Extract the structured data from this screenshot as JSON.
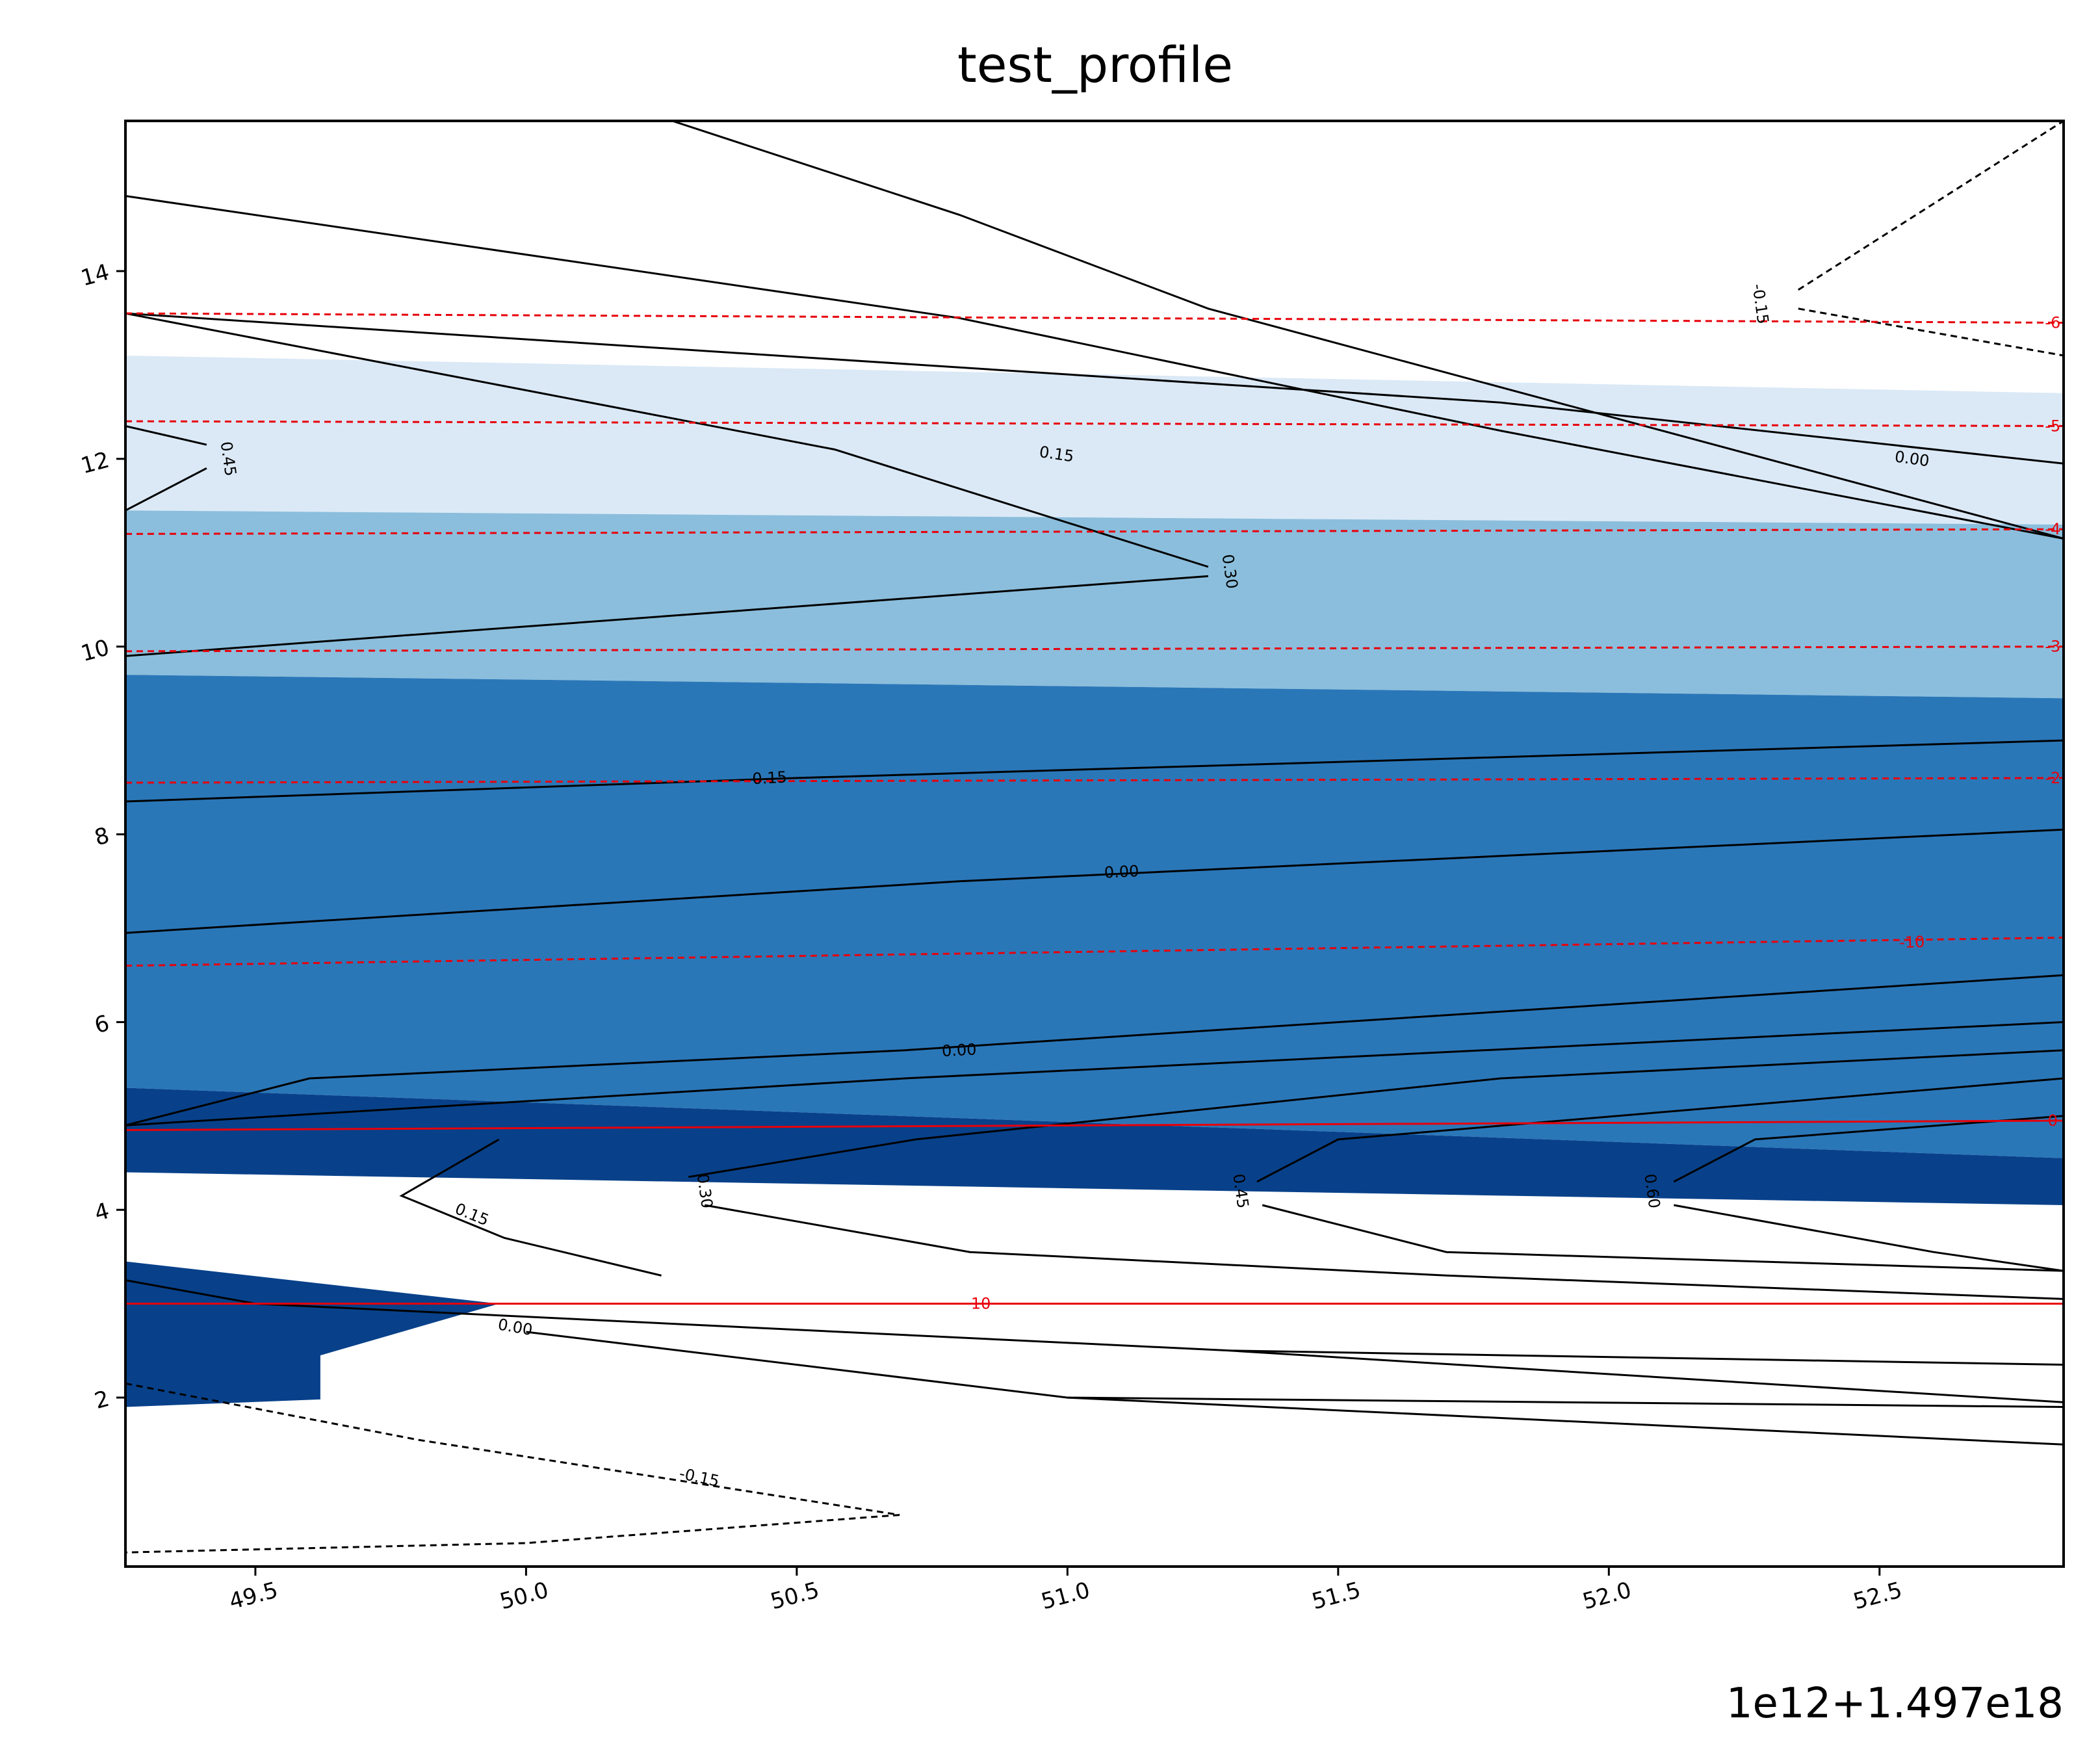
{
  "chart_data": {
    "type": "contour",
    "title": "test_profile",
    "xlabel": "",
    "ylabel": "",
    "x_offset_label": "1e12+1.497e18",
    "xlim": [
      49.26,
      52.84
    ],
    "ylim": [
      0.2,
      15.6
    ],
    "x_ticks": [
      49.5,
      50.0,
      50.5,
      51.0,
      51.5,
      52.0,
      52.5
    ],
    "x_tick_labels": [
      "49.5",
      "50.0",
      "50.5",
      "51.0",
      "51.5",
      "52.0",
      "52.5"
    ],
    "y_ticks": [
      2,
      4,
      6,
      8,
      10,
      12,
      14
    ],
    "y_tick_labels": [
      "2",
      "4",
      "6",
      "8",
      "10",
      "12",
      "14"
    ],
    "filled_regions": [
      {
        "color": "#dbe9f6",
        "points": [
          [
            49.26,
            13.1
          ],
          [
            52.84,
            12.7
          ],
          [
            52.84,
            11.3
          ],
          [
            49.26,
            11.45
          ]
        ]
      },
      {
        "color": "#8bbedc",
        "points": [
          [
            49.26,
            11.45
          ],
          [
            52.84,
            11.3
          ],
          [
            52.84,
            9.45
          ],
          [
            49.26,
            9.7
          ]
        ]
      },
      {
        "color": "#2a77b8",
        "points": [
          [
            49.26,
            9.7
          ],
          [
            52.84,
            9.45
          ],
          [
            52.84,
            4.55
          ],
          [
            49.26,
            5.3
          ]
        ]
      },
      {
        "color": "#08418a",
        "points": [
          [
            49.26,
            5.3
          ],
          [
            52.84,
            4.55
          ],
          [
            52.84,
            4.05
          ],
          [
            49.26,
            4.4
          ]
        ]
      },
      {
        "color": "#08418a",
        "points": [
          [
            49.26,
            3.45
          ],
          [
            49.95,
            3.0
          ],
          [
            49.62,
            2.45
          ],
          [
            49.62,
            1.98
          ],
          [
            49.26,
            1.9
          ]
        ]
      }
    ],
    "black_contours": [
      {
        "level": "0.30",
        "dashed": false,
        "points": [
          [
            50.27,
            15.6
          ],
          [
            50.8,
            14.6
          ],
          [
            51.26,
            13.6
          ],
          [
            52.84,
            11.15
          ]
        ]
      },
      {
        "level": "0.15",
        "dashed": false,
        "points": [
          [
            49.26,
            14.8
          ],
          [
            50.8,
            13.5
          ],
          [
            51.8,
            12.3
          ],
          [
            52.84,
            11.15
          ]
        ]
      },
      {
        "level": "0.00",
        "dashed": false,
        "points": [
          [
            49.26,
            13.55
          ],
          [
            51.8,
            12.6
          ],
          [
            52.84,
            11.95
          ]
        ]
      },
      {
        "level": "0.45",
        "dashed": false,
        "points": [
          [
            49.26,
            12.35
          ],
          [
            49.41,
            12.15
          ]
        ]
      },
      {
        "level": "0.45",
        "dashed": false,
        "points": [
          [
            49.41,
            11.9
          ],
          [
            49.26,
            11.45
          ]
        ]
      },
      {
        "level": "0.30",
        "dashed": false,
        "points": [
          [
            49.26,
            13.55
          ],
          [
            50.57,
            12.1
          ],
          [
            51.26,
            10.85
          ]
        ]
      },
      {
        "level": "0.30",
        "dashed": false,
        "points": [
          [
            51.26,
            10.75
          ],
          [
            49.26,
            9.9
          ]
        ]
      },
      {
        "level": "0.15",
        "dashed": false,
        "points": [
          [
            49.26,
            8.35
          ],
          [
            50.5,
            8.6
          ],
          [
            52.84,
            9.0
          ]
        ]
      },
      {
        "level": "0.00",
        "dashed": false,
        "points": [
          [
            49.26,
            6.95
          ],
          [
            50.8,
            7.5
          ],
          [
            52.84,
            8.05
          ]
        ]
      },
      {
        "level": "0.00",
        "dashed": false,
        "points": [
          [
            49.26,
            4.9
          ],
          [
            49.6,
            5.4
          ],
          [
            50.7,
            5.7
          ],
          [
            52.84,
            6.5
          ]
        ]
      },
      {
        "level": "",
        "dashed": false,
        "points": [
          [
            49.26,
            4.9
          ],
          [
            50.7,
            5.4
          ],
          [
            52.84,
            6.0
          ]
        ]
      },
      {
        "level": "",
        "dashed": false,
        "points": [
          [
            50.3,
            4.35
          ],
          [
            50.72,
            4.75
          ],
          [
            51.8,
            5.4
          ],
          [
            52.84,
            5.7
          ]
        ]
      },
      {
        "level": "",
        "dashed": false,
        "points": [
          [
            51.35,
            4.3
          ],
          [
            51.5,
            4.75
          ],
          [
            52.84,
            5.4
          ]
        ]
      },
      {
        "level": "",
        "dashed": false,
        "points": [
          [
            52.12,
            4.3
          ],
          [
            52.27,
            4.75
          ],
          [
            52.84,
            5.0
          ]
        ]
      },
      {
        "level": "0.15",
        "dashed": false,
        "points": [
          [
            49.95,
            4.75
          ],
          [
            49.77,
            4.15
          ],
          [
            49.96,
            3.7
          ],
          [
            50.25,
            3.3
          ]
        ]
      },
      {
        "level": "0.30",
        "dashed": false,
        "points": [
          [
            50.33,
            4.05
          ],
          [
            50.82,
            3.55
          ],
          [
            51.7,
            3.3
          ],
          [
            52.84,
            3.05
          ]
        ]
      },
      {
        "level": "0.45",
        "dashed": false,
        "points": [
          [
            51.36,
            4.05
          ],
          [
            51.7,
            3.55
          ],
          [
            52.84,
            3.35
          ]
        ]
      },
      {
        "level": "0.60",
        "dashed": false,
        "points": [
          [
            52.12,
            4.05
          ],
          [
            52.6,
            3.55
          ],
          [
            52.84,
            3.35
          ]
        ]
      },
      {
        "level": "0.00",
        "dashed": false,
        "points": [
          [
            49.26,
            3.25
          ],
          [
            49.5,
            3.0
          ],
          [
            51.3,
            2.5
          ],
          [
            52.84,
            2.35
          ]
        ]
      },
      {
        "level": "",
        "dashed": false,
        "points": [
          [
            50.0,
            2.7
          ],
          [
            51.0,
            2.0
          ],
          [
            52.84,
            1.5
          ]
        ]
      },
      {
        "level": "",
        "dashed": false,
        "points": [
          [
            51.3,
            2.5
          ],
          [
            52.84,
            1.95
          ]
        ]
      },
      {
        "level": "",
        "dashed": false,
        "points": [
          [
            51.0,
            2.0
          ],
          [
            52.84,
            1.9
          ]
        ]
      },
      {
        "level": "-0.15",
        "dashed": true,
        "points": [
          [
            49.26,
            2.15
          ],
          [
            49.8,
            1.55
          ],
          [
            50.69,
            0.75
          ]
        ]
      },
      {
        "level": "-0.15",
        "dashed": true,
        "points": [
          [
            50.69,
            0.75
          ],
          [
            50.0,
            0.45
          ],
          [
            49.26,
            0.35
          ]
        ]
      },
      {
        "level": "-0.15",
        "dashed": true,
        "points": [
          [
            52.35,
            13.8
          ],
          [
            52.84,
            15.6
          ]
        ]
      },
      {
        "level": "-0.15",
        "dashed": true,
        "points": [
          [
            52.35,
            13.6
          ],
          [
            52.84,
            13.1
          ]
        ]
      }
    ],
    "red_contours": [
      {
        "level": "-6",
        "dashed": true,
        "points": [
          [
            49.26,
            13.55
          ],
          [
            52.84,
            13.45
          ]
        ]
      },
      {
        "level": "-5",
        "dashed": true,
        "points": [
          [
            49.26,
            12.4
          ],
          [
            52.84,
            12.35
          ]
        ]
      },
      {
        "level": "-4",
        "dashed": true,
        "points": [
          [
            49.26,
            11.2
          ],
          [
            52.84,
            11.25
          ]
        ]
      },
      {
        "level": "-3",
        "dashed": true,
        "points": [
          [
            49.26,
            9.95
          ],
          [
            52.84,
            10.0
          ]
        ]
      },
      {
        "level": "-2",
        "dashed": true,
        "points": [
          [
            49.26,
            8.55
          ],
          [
            52.84,
            8.6
          ]
        ]
      },
      {
        "level": "-10",
        "dashed": true,
        "points": [
          [
            49.26,
            6.6
          ],
          [
            52.84,
            6.9
          ]
        ]
      },
      {
        "level": "0",
        "dashed": false,
        "points": [
          [
            49.26,
            4.85
          ],
          [
            52.84,
            4.95
          ]
        ]
      },
      {
        "level": "10",
        "dashed": false,
        "points": [
          [
            49.26,
            3.0
          ],
          [
            52.84,
            3.0
          ]
        ]
      }
    ],
    "contour_labels": [
      {
        "text": "0.15",
        "x": 50.98,
        "y": 12.05,
        "angle": 8,
        "color": "#000"
      },
      {
        "text": "0.00",
        "x": 52.56,
        "y": 12.0,
        "angle": 8,
        "color": "#000"
      },
      {
        "text": "0.45",
        "x": 49.45,
        "y": 12.0,
        "angle": 82,
        "color": "#000"
      },
      {
        "text": "0.30",
        "x": 51.3,
        "y": 10.8,
        "angle": 82,
        "color": "#000"
      },
      {
        "text": "0.15",
        "x": 50.45,
        "y": 8.6,
        "angle": -3,
        "color": "#000"
      },
      {
        "text": "0.00",
        "x": 51.1,
        "y": 7.6,
        "angle": -3,
        "color": "#000"
      },
      {
        "text": "0.00",
        "x": 50.8,
        "y": 5.7,
        "angle": -3,
        "color": "#000"
      },
      {
        "text": "0.30",
        "x": 50.33,
        "y": 4.2,
        "angle": 82,
        "color": "#000"
      },
      {
        "text": "0.45",
        "x": 51.32,
        "y": 4.2,
        "angle": 82,
        "color": "#000"
      },
      {
        "text": "0.60",
        "x": 52.08,
        "y": 4.2,
        "angle": 82,
        "color": "#000"
      },
      {
        "text": "0.15",
        "x": 49.9,
        "y": 3.95,
        "angle": 22,
        "color": "#000"
      },
      {
        "text": "0.00",
        "x": 49.98,
        "y": 2.75,
        "angle": 10,
        "color": "#000"
      },
      {
        "text": "-0.15",
        "x": 50.32,
        "y": 1.15,
        "angle": 12,
        "color": "#000"
      },
      {
        "text": "-0.15",
        "x": 52.28,
        "y": 13.65,
        "angle": 82,
        "color": "#000"
      },
      {
        "text": "10",
        "x": 50.84,
        "y": 3.0,
        "angle": 0,
        "color": "#e8000b"
      },
      {
        "text": "-10",
        "x": 52.56,
        "y": 6.85,
        "angle": -2,
        "color": "#e8000b"
      },
      {
        "text": "-6",
        "x": 52.82,
        "y": 13.45,
        "angle": 0,
        "color": "#e8000b"
      },
      {
        "text": "-5",
        "x": 52.82,
        "y": 12.35,
        "angle": 0,
        "color": "#e8000b"
      },
      {
        "text": "-4",
        "x": 52.82,
        "y": 11.25,
        "angle": 0,
        "color": "#e8000b"
      },
      {
        "text": "-3",
        "x": 52.82,
        "y": 10.0,
        "angle": 0,
        "color": "#e8000b"
      },
      {
        "text": "-2",
        "x": 52.82,
        "y": 8.6,
        "angle": 0,
        "color": "#e8000b"
      },
      {
        "text": "0",
        "x": 52.82,
        "y": 4.95,
        "angle": 0,
        "color": "#e8000b"
      }
    ],
    "grid": false,
    "legend": "none"
  }
}
